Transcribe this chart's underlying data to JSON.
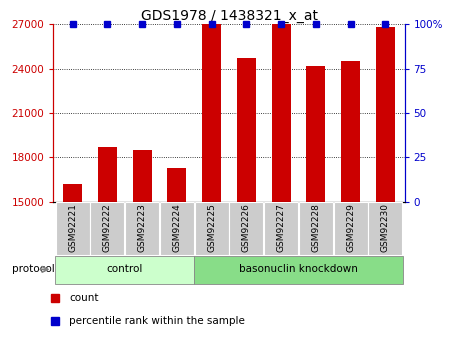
{
  "title": "GDS1978 / 1438321_x_at",
  "samples": [
    "GSM92221",
    "GSM92222",
    "GSM92223",
    "GSM92224",
    "GSM92225",
    "GSM92226",
    "GSM92227",
    "GSM92228",
    "GSM92229",
    "GSM92230"
  ],
  "counts": [
    16200,
    18700,
    18500,
    17300,
    27000,
    24700,
    27000,
    24200,
    24500,
    26800
  ],
  "percentiles": [
    100,
    100,
    100,
    100,
    100,
    100,
    100,
    100,
    100,
    100
  ],
  "ylim_left": [
    15000,
    27000
  ],
  "ylim_right": [
    0,
    100
  ],
  "yticks_left": [
    15000,
    18000,
    21000,
    24000,
    27000
  ],
  "yticks_right": [
    0,
    25,
    50,
    75,
    100
  ],
  "bar_color": "#cc0000",
  "percentile_color": "#0000cc",
  "control_samples_count": 4,
  "knockdown_samples_count": 6,
  "control_label": "control",
  "knockdown_label": "basonuclin knockdown",
  "protocol_label": "protocol",
  "legend_count": "count",
  "legend_percentile": "percentile rank within the sample",
  "control_bg": "#ccffcc",
  "knockdown_bg": "#88dd88",
  "xlabel_bg": "#cccccc",
  "bar_width": 0.55,
  "percentile_size": 5,
  "title_fontsize": 10,
  "tick_fontsize": 7.5,
  "label_fontsize": 8
}
